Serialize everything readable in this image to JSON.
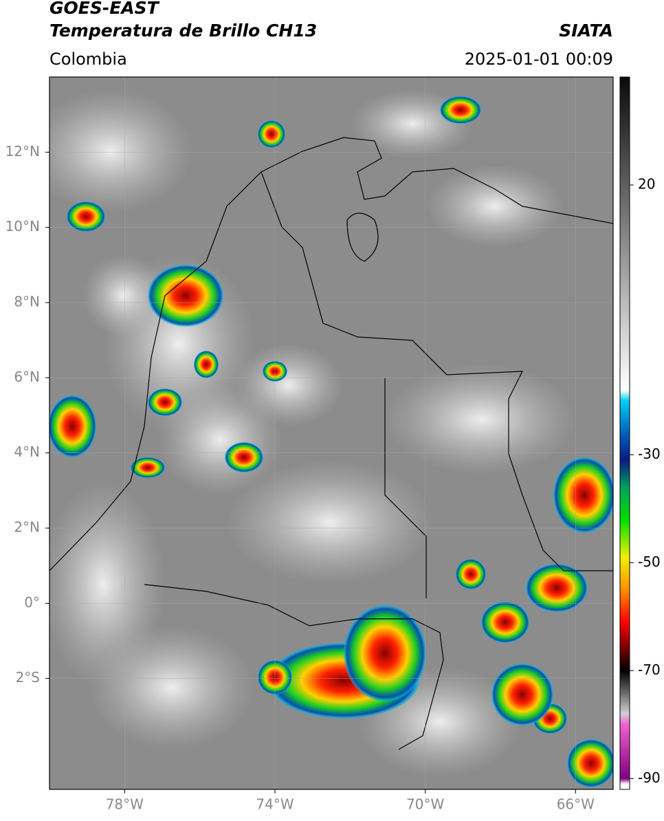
{
  "header": {
    "title_line1": "GOES-EAST",
    "title_line2": "Temperatura de Brillo CH13",
    "source": "SIATA",
    "region": "Colombia",
    "datetime": "2025-01-01 00:09"
  },
  "map": {
    "xlim": [
      -80,
      -65
    ],
    "ylim": [
      -4.95,
      14
    ],
    "xticks": [
      {
        "value": -78,
        "label": "78°W"
      },
      {
        "value": -74,
        "label": "74°W"
      },
      {
        "value": -70,
        "label": "70°W"
      },
      {
        "value": -66,
        "label": "66°W"
      }
    ],
    "yticks": [
      {
        "value": 12,
        "label": "12°N"
      },
      {
        "value": 10,
        "label": "10°N"
      },
      {
        "value": 8,
        "label": "8°N"
      },
      {
        "value": 6,
        "label": "6°N"
      },
      {
        "value": 4,
        "label": "4°N"
      },
      {
        "value": 2,
        "label": "2°N"
      },
      {
        "value": 0,
        "label": "0°"
      },
      {
        "value": -2,
        "label": "2°S"
      }
    ],
    "grid": true
  },
  "colorbar": {
    "lim": [
      -92,
      40
    ],
    "ticks": [
      20,
      -30,
      -50,
      -70,
      -90
    ],
    "stops": [
      [
        40,
        "#0a0a0a"
      ],
      [
        -18,
        "#ffffff"
      ],
      [
        -20,
        "#00d0f0"
      ],
      [
        -26,
        "#0060c0"
      ],
      [
        -31,
        "#0a1a80"
      ],
      [
        -36,
        "#00a060"
      ],
      [
        -42,
        "#00e000"
      ],
      [
        -49,
        "#f0f000"
      ],
      [
        -55,
        "#ff9000"
      ],
      [
        -61,
        "#ff0000"
      ],
      [
        -66,
        "#700000"
      ],
      [
        -70,
        "#000000"
      ],
      [
        -78,
        "#d0d0d0"
      ],
      [
        -80,
        "#f060d0"
      ],
      [
        -90,
        "#800080"
      ],
      [
        -91,
        "#ffffff"
      ],
      [
        -92,
        "#ffffff"
      ]
    ]
  }
}
